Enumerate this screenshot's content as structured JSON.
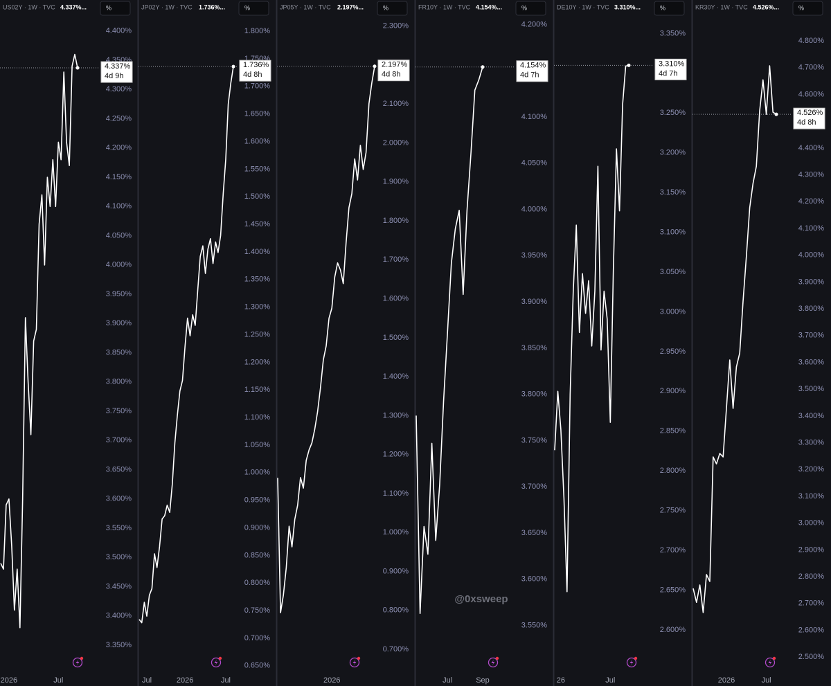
{
  "chart_data": [
    {
      "type": "line",
      "title": "US02Y · 1W · TVC",
      "header_value": "4.337%...",
      "unit_button": "%",
      "last_label": "4.337%",
      "countdown": "4d 9h",
      "color": "#ffffff",
      "categories": [
        null,
        null,
        null,
        "2026",
        null,
        null,
        null,
        null,
        null,
        null,
        null,
        null,
        null,
        null,
        null,
        null,
        null,
        null,
        null,
        null,
        null,
        "Jul",
        null,
        null,
        null,
        null,
        null,
        null,
        null
      ],
      "values": [
        3.49,
        3.48,
        3.59,
        3.6,
        3.52,
        3.41,
        3.48,
        3.38,
        3.6,
        3.91,
        3.8,
        3.71,
        3.87,
        3.89,
        4.07,
        4.12,
        4.0,
        4.15,
        4.1,
        4.18,
        4.1,
        4.21,
        4.18,
        4.33,
        4.21,
        4.17,
        4.34,
        4.36,
        4.337
      ],
      "ylim": [
        3.311,
        4.427
      ],
      "yticks": [
        {
          "value": 4.4,
          "label": "4.400%"
        },
        {
          "value": 4.35,
          "label": "4.350%"
        },
        {
          "value": 4.3,
          "label": "4.300%"
        },
        {
          "value": 4.25,
          "label": "4.250%"
        },
        {
          "value": 4.2,
          "label": "4.200%"
        },
        {
          "value": 4.15,
          "label": "4.150%"
        },
        {
          "value": 4.1,
          "label": "4.100%"
        },
        {
          "value": 4.05,
          "label": "4.050%"
        },
        {
          "value": 4.0,
          "label": "4.000%"
        },
        {
          "value": 3.95,
          "label": "3.950%"
        },
        {
          "value": 3.9,
          "label": "3.900%"
        },
        {
          "value": 3.85,
          "label": "3.850%"
        },
        {
          "value": 3.8,
          "label": "3.800%"
        },
        {
          "value": 3.75,
          "label": "3.750%"
        },
        {
          "value": 3.7,
          "label": "3.700%"
        },
        {
          "value": 3.65,
          "label": "3.650%"
        },
        {
          "value": 3.6,
          "label": "3.600%"
        },
        {
          "value": 3.55,
          "label": "3.550%"
        },
        {
          "value": 3.5,
          "label": "3.500%"
        },
        {
          "value": 3.45,
          "label": "3.450%"
        },
        {
          "value": 3.4,
          "label": "3.400%"
        },
        {
          "value": 3.35,
          "label": "3.350%"
        }
      ]
    },
    {
      "type": "line",
      "title": "JP02Y · 1W · TVC",
      "header_value": "1.736%...",
      "unit_button": "%",
      "last_label": "1.736%",
      "countdown": "4d 8h",
      "color": "#ffffff",
      "categories": [
        null,
        null,
        null,
        "Jul",
        null,
        null,
        null,
        null,
        null,
        null,
        null,
        null,
        null,
        null,
        null,
        null,
        null,
        null,
        "2026",
        null,
        null,
        null,
        null,
        null,
        null,
        null,
        null,
        null,
        null,
        null,
        null,
        null,
        null,
        null,
        "Jul",
        null,
        null,
        null
      ],
      "values": [
        0.734,
        0.728,
        0.765,
        0.74,
        0.778,
        0.79,
        0.853,
        0.828,
        0.866,
        0.916,
        0.922,
        0.941,
        0.928,
        0.979,
        1.054,
        1.104,
        1.148,
        1.167,
        1.229,
        1.28,
        1.248,
        1.286,
        1.267,
        1.33,
        1.392,
        1.411,
        1.361,
        1.405,
        1.424,
        1.379,
        1.418,
        1.399,
        1.43,
        1.505,
        1.568,
        1.668,
        1.706,
        1.736
      ],
      "ylim": [
        0.646,
        1.829
      ],
      "yticks": [
        {
          "value": 1.8,
          "label": "1.800%"
        },
        {
          "value": 1.75,
          "label": "1.750%"
        },
        {
          "value": 1.7,
          "label": "1.700%"
        },
        {
          "value": 1.65,
          "label": "1.650%"
        },
        {
          "value": 1.6,
          "label": "1.600%"
        },
        {
          "value": 1.55,
          "label": "1.550%"
        },
        {
          "value": 1.5,
          "label": "1.500%"
        },
        {
          "value": 1.45,
          "label": "1.450%"
        },
        {
          "value": 1.4,
          "label": "1.400%"
        },
        {
          "value": 1.35,
          "label": "1.350%"
        },
        {
          "value": 1.3,
          "label": "1.300%"
        },
        {
          "value": 1.25,
          "label": "1.250%"
        },
        {
          "value": 1.2,
          "label": "1.200%"
        },
        {
          "value": 1.15,
          "label": "1.150%"
        },
        {
          "value": 1.1,
          "label": "1.100%"
        },
        {
          "value": 1.05,
          "label": "1.050%"
        },
        {
          "value": 1.0,
          "label": "1.000%"
        },
        {
          "value": 0.95,
          "label": "0.950%"
        },
        {
          "value": 0.9,
          "label": "0.900%"
        },
        {
          "value": 0.85,
          "label": "0.850%"
        },
        {
          "value": 0.8,
          "label": "0.800%"
        },
        {
          "value": 0.75,
          "label": "0.750%"
        },
        {
          "value": 0.7,
          "label": "0.700%"
        },
        {
          "value": 0.65,
          "label": "0.650%"
        }
      ]
    },
    {
      "type": "line",
      "title": "JP05Y · 1W · TVC",
      "header_value": "2.197%...",
      "unit_button": "%",
      "last_label": "2.197%",
      "countdown": "4d 8h",
      "color": "#ffffff",
      "categories": [
        null,
        null,
        null,
        null,
        null,
        null,
        null,
        null,
        null,
        null,
        null,
        null,
        null,
        null,
        null,
        null,
        null,
        null,
        null,
        "2026",
        null,
        null,
        null,
        null,
        null,
        null,
        null,
        null,
        null,
        null,
        null,
        null,
        null,
        null,
        null
      ],
      "values": [
        1.14,
        0.794,
        0.839,
        0.91,
        1.016,
        0.963,
        1.034,
        1.07,
        1.141,
        1.114,
        1.185,
        1.212,
        1.23,
        1.265,
        1.31,
        1.372,
        1.443,
        1.479,
        1.55,
        1.576,
        1.656,
        1.692,
        1.674,
        1.639,
        1.745,
        1.834,
        1.87,
        1.959,
        1.905,
        1.994,
        1.932,
        1.976,
        2.101,
        2.154,
        2.197
      ],
      "ylim": [
        0.652,
        2.328
      ],
      "yticks": [
        {
          "value": 2.3,
          "label": "2.300%"
        },
        {
          "value": 2.2,
          "label": "2.200%"
        },
        {
          "value": 2.1,
          "label": "2.100%"
        },
        {
          "value": 2.0,
          "label": "2.000%"
        },
        {
          "value": 1.9,
          "label": "1.900%"
        },
        {
          "value": 1.8,
          "label": "1.800%"
        },
        {
          "value": 1.7,
          "label": "1.700%"
        },
        {
          "value": 1.6,
          "label": "1.600%"
        },
        {
          "value": 1.5,
          "label": "1.500%"
        },
        {
          "value": 1.4,
          "label": "1.400%"
        },
        {
          "value": 1.3,
          "label": "1.300%"
        },
        {
          "value": 1.2,
          "label": "1.200%"
        },
        {
          "value": 1.1,
          "label": "1.100%"
        },
        {
          "value": 1.0,
          "label": "1.000%"
        },
        {
          "value": 0.9,
          "label": "0.900%"
        },
        {
          "value": 0.8,
          "label": "0.800%"
        },
        {
          "value": 0.7,
          "label": "0.700%"
        }
      ]
    },
    {
      "type": "line",
      "title": "FR10Y · 1W · TVC",
      "header_value": "4.154%...",
      "unit_button": "%",
      "last_label": "4.154%",
      "countdown": "4d 7h",
      "color": "#ffffff",
      "categories": [
        null,
        null,
        null,
        null,
        null,
        null,
        null,
        null,
        "Jul",
        null,
        null,
        null,
        null,
        null,
        null,
        null,
        null,
        "Sep"
      ],
      "values": [
        3.777,
        3.563,
        3.657,
        3.627,
        3.747,
        3.642,
        3.702,
        3.792,
        3.867,
        3.942,
        3.979,
        3.999,
        3.908,
        3.999,
        4.061,
        4.129,
        4.14,
        4.154
      ],
      "ylim": [
        3.504,
        4.21
      ],
      "yticks": [
        {
          "value": 4.2,
          "label": "4.200%"
        },
        {
          "value": 4.15,
          "label": "4.150%"
        },
        {
          "value": 4.1,
          "label": "4.100%"
        },
        {
          "value": 4.05,
          "label": "4.050%"
        },
        {
          "value": 4.0,
          "label": "4.000%"
        },
        {
          "value": 3.95,
          "label": "3.950%"
        },
        {
          "value": 3.9,
          "label": "3.900%"
        },
        {
          "value": 3.85,
          "label": "3.850%"
        },
        {
          "value": 3.8,
          "label": "3.800%"
        },
        {
          "value": 3.75,
          "label": "3.750%"
        },
        {
          "value": 3.7,
          "label": "3.700%"
        },
        {
          "value": 3.65,
          "label": "3.650%"
        },
        {
          "value": 3.6,
          "label": "3.600%"
        },
        {
          "value": 3.55,
          "label": "3.550%"
        }
      ]
    },
    {
      "type": "line",
      "title": "DE10Y · 1W · TVC",
      "header_value": "3.310%...",
      "unit_button": "%",
      "last_label": "3.310%",
      "countdown": "4d 7h",
      "color": "#ffffff",
      "categories": [
        null,
        null,
        "26",
        null,
        null,
        null,
        null,
        null,
        null,
        null,
        null,
        null,
        null,
        null,
        null,
        null,
        null,
        null,
        "Jul",
        null,
        null,
        null,
        null,
        null,
        null
      ],
      "values": [
        2.826,
        2.9,
        2.852,
        2.765,
        2.648,
        2.896,
        3.026,
        3.109,
        2.974,
        3.048,
        2.998,
        3.039,
        2.957,
        3.026,
        3.183,
        2.952,
        3.026,
        2.991,
        2.861,
        3.052,
        3.205,
        3.127,
        3.261,
        3.309,
        3.31
      ],
      "ylim": [
        2.552,
        3.373
      ],
      "yticks": [
        {
          "value": 3.35,
          "label": "3.350%"
        },
        {
          "value": 3.3,
          "label": "3.300%"
        },
        {
          "value": 3.25,
          "label": "3.250%"
        },
        {
          "value": 3.2,
          "label": "3.200%"
        },
        {
          "value": 3.15,
          "label": "3.150%"
        },
        {
          "value": 3.1,
          "label": "3.100%"
        },
        {
          "value": 3.05,
          "label": "3.050%"
        },
        {
          "value": 3.0,
          "label": "3.000%"
        },
        {
          "value": 2.95,
          "label": "2.950%"
        },
        {
          "value": 2.9,
          "label": "2.900%"
        },
        {
          "value": 2.85,
          "label": "2.850%"
        },
        {
          "value": 2.8,
          "label": "2.800%"
        },
        {
          "value": 2.75,
          "label": "2.750%"
        },
        {
          "value": 2.7,
          "label": "2.700%"
        },
        {
          "value": 2.65,
          "label": "2.650%"
        },
        {
          "value": 2.6,
          "label": "2.600%"
        }
      ]
    },
    {
      "type": "line",
      "title": "KR30Y · 1W · TVC",
      "header_value": "4.526%...",
      "unit_button": "%",
      "last_label": "4.526%",
      "countdown": "4d 8h",
      "color": "#ffffff",
      "categories": [
        null,
        null,
        null,
        null,
        null,
        null,
        null,
        null,
        null,
        null,
        "2026",
        null,
        null,
        null,
        null,
        null,
        null,
        null,
        null,
        null,
        null,
        null,
        "Jul",
        null,
        null,
        null
      ],
      "values": [
        2.756,
        2.704,
        2.769,
        2.666,
        2.808,
        2.782,
        3.247,
        3.221,
        3.26,
        3.247,
        3.428,
        3.609,
        3.428,
        3.583,
        3.635,
        3.828,
        3.996,
        4.177,
        4.268,
        4.332,
        4.539,
        4.655,
        4.526,
        4.707,
        4.534,
        4.526
      ],
      "ylim": [
        2.459,
        4.896
      ],
      "yticks": [
        {
          "value": 4.8,
          "label": "4.800%"
        },
        {
          "value": 4.7,
          "label": "4.700%"
        },
        {
          "value": 4.6,
          "label": "4.600%"
        },
        {
          "value": 4.5,
          "label": "4.500%"
        },
        {
          "value": 4.4,
          "label": "4.400%"
        },
        {
          "value": 4.3,
          "label": "4.300%"
        },
        {
          "value": 4.2,
          "label": "4.200%"
        },
        {
          "value": 4.1,
          "label": "4.100%"
        },
        {
          "value": 4.0,
          "label": "4.000%"
        },
        {
          "value": 3.9,
          "label": "3.900%"
        },
        {
          "value": 3.8,
          "label": "3.800%"
        },
        {
          "value": 3.7,
          "label": "3.700%"
        },
        {
          "value": 3.6,
          "label": "3.600%"
        },
        {
          "value": 3.5,
          "label": "3.500%"
        },
        {
          "value": 3.4,
          "label": "3.400%"
        },
        {
          "value": 3.3,
          "label": "3.300%"
        },
        {
          "value": 3.2,
          "label": "3.200%"
        },
        {
          "value": 3.1,
          "label": "3.100%"
        },
        {
          "value": 3.0,
          "label": "3.000%"
        },
        {
          "value": 2.9,
          "label": "2.900%"
        },
        {
          "value": 2.8,
          "label": "2.800%"
        },
        {
          "value": 2.7,
          "label": "2.700%"
        },
        {
          "value": 2.6,
          "label": "2.600%"
        },
        {
          "value": 2.5,
          "label": "2.500%"
        }
      ]
    }
  ],
  "watermark": "@0xsweep"
}
